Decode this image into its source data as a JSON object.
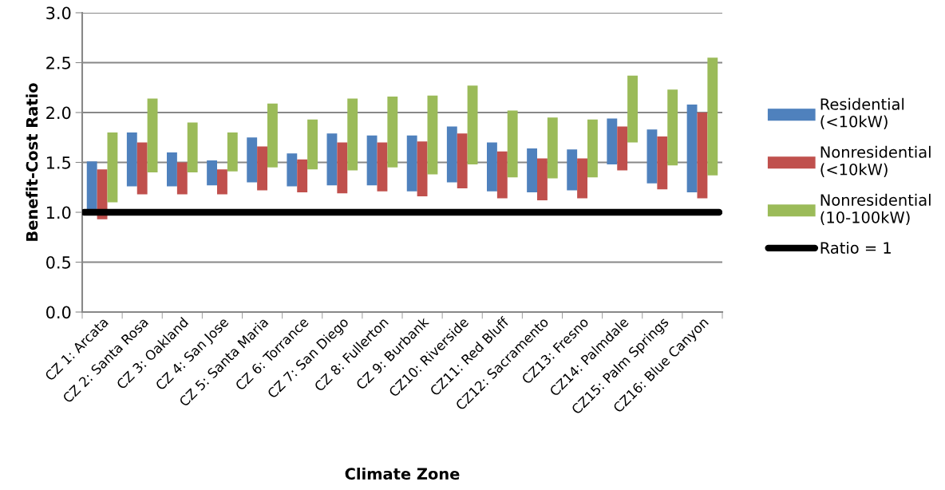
{
  "chart_data": {
    "type": "bar",
    "xlabel": "Climate Zone",
    "ylabel": "Benefit-Cost Ratio",
    "categories": [
      "CZ 1: Arcata",
      "CZ 2: Santa Rosa",
      "CZ 3: Oakland",
      "CZ 4: San Jose",
      "CZ 5: Santa Maria",
      "CZ 6: Torrance",
      "CZ 7: San Diego",
      "CZ 8: Fullerton",
      "CZ 9: Burbank",
      "CZ10: Riverside",
      "CZ11: Red Bluff",
      "CZ12: Sacramento",
      "CZ13: Fresno",
      "CZ14: Palmdale",
      "CZ15: Palm Springs",
      "CZ16: Blue Canyon"
    ],
    "series": [
      {
        "name": "Residential\n(<10kW)",
        "color": "#4f81bd",
        "base": [
          1.0,
          1.26,
          1.26,
          1.27,
          1.3,
          1.26,
          1.27,
          1.27,
          1.21,
          1.3,
          1.21,
          1.2,
          1.22,
          1.48,
          1.29,
          1.2
        ],
        "values": [
          0.51,
          0.54,
          0.34,
          0.25,
          0.45,
          0.33,
          0.52,
          0.5,
          0.56,
          0.56,
          0.49,
          0.44,
          0.41,
          0.46,
          0.54,
          0.88
        ]
      },
      {
        "name": "Nonresidential\n(<10kW)",
        "color": "#c0504d",
        "base": [
          0.93,
          1.18,
          1.18,
          1.18,
          1.22,
          1.2,
          1.19,
          1.21,
          1.16,
          1.24,
          1.14,
          1.12,
          1.14,
          1.42,
          1.23,
          1.14
        ],
        "values": [
          0.5,
          0.52,
          0.32,
          0.25,
          0.44,
          0.33,
          0.51,
          0.49,
          0.55,
          0.55,
          0.47,
          0.42,
          0.4,
          0.44,
          0.53,
          0.86
        ]
      },
      {
        "name": "Nonresidential\n(10-100kW)",
        "color": "#9bbb59",
        "base": [
          1.1,
          1.4,
          1.4,
          1.41,
          1.45,
          1.43,
          1.42,
          1.45,
          1.38,
          1.48,
          1.35,
          1.34,
          1.35,
          1.7,
          1.47,
          1.37
        ],
        "values": [
          0.7,
          0.74,
          0.5,
          0.39,
          0.64,
          0.5,
          0.72,
          0.71,
          0.79,
          0.79,
          0.67,
          0.61,
          0.58,
          0.67,
          0.76,
          1.18
        ]
      }
    ],
    "ref_lines": [
      {
        "axis": "y",
        "value": 1.0,
        "label": "Ratio = 1",
        "color": "#000000"
      }
    ],
    "ylim": [
      0.0,
      3.0
    ],
    "yticks": [
      {
        "value": 0.0,
        "label": "0.0"
      },
      {
        "value": 0.5,
        "label": "0.5"
      },
      {
        "value": 1.0,
        "label": "1.0"
      },
      {
        "value": 1.5,
        "label": "1.5"
      },
      {
        "value": 2.0,
        "label": "2.0"
      },
      {
        "value": 2.5,
        "label": "2.5"
      },
      {
        "value": 3.0,
        "label": "3.0"
      }
    ],
    "grid": "y",
    "legend": "right"
  }
}
